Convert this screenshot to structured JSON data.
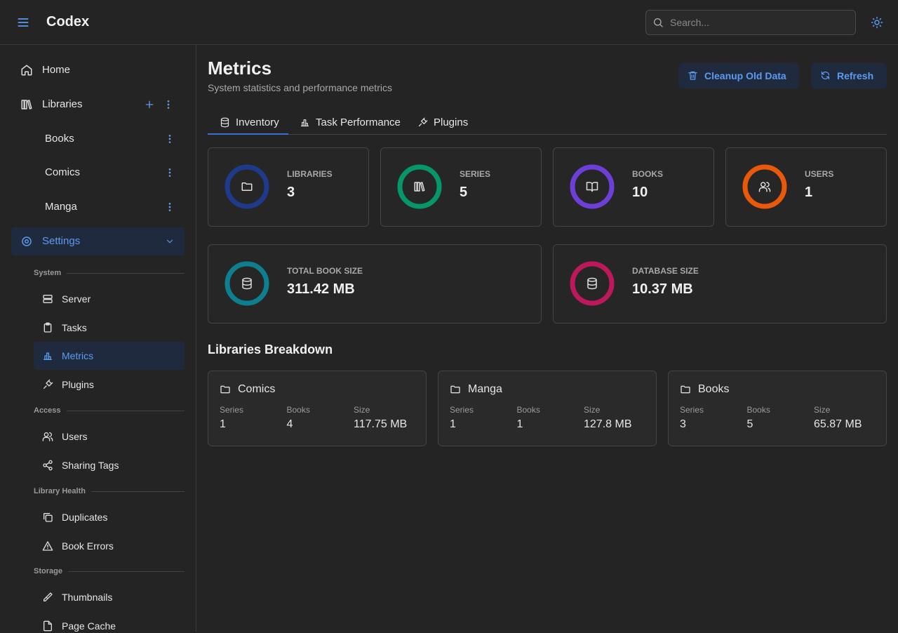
{
  "header": {
    "app_name": "Codex",
    "search_placeholder": "Search..."
  },
  "sidebar": {
    "nav": [
      "Home",
      "Libraries"
    ],
    "libraries": [
      "Books",
      "Comics",
      "Manga"
    ],
    "settings": "Settings",
    "sections": [
      {
        "title": "System",
        "items": [
          "Server",
          "Tasks",
          "Metrics",
          "Plugins"
        ]
      },
      {
        "title": "Access",
        "items": [
          "Users",
          "Sharing Tags"
        ]
      },
      {
        "title": "Library Health",
        "items": [
          "Duplicates",
          "Book Errors"
        ]
      },
      {
        "title": "Storage",
        "items": [
          "Thumbnails",
          "Page Cache"
        ]
      }
    ]
  },
  "page": {
    "title": "Metrics",
    "subtitle": "System statistics and performance metrics",
    "buttons": [
      "Cleanup Old Data",
      "Refresh"
    ],
    "tabs": [
      "Inventory",
      "Task Performance",
      "Plugins"
    ]
  },
  "stats": [
    {
      "label": "LIBRARIES",
      "value": 3
    },
    {
      "label": "SERIES",
      "value": 5
    },
    {
      "label": "BOOKS",
      "value": 10
    },
    {
      "label": "USERS",
      "value": 1
    }
  ],
  "sizes": [
    {
      "label": "TOTAL BOOK SIZE",
      "value": "311.42 MB"
    },
    {
      "label": "DATABASE SIZE",
      "value": "10.37 MB"
    }
  ],
  "breakdown": {
    "title": "Libraries Breakdown",
    "columns": [
      "Series",
      "Books",
      "Size"
    ],
    "libraries": [
      {
        "name": "Comics",
        "series": 1,
        "books": 4,
        "size": "117.75 MB"
      },
      {
        "name": "Manga",
        "series": 1,
        "books": 1,
        "size": "127.8 MB"
      },
      {
        "name": "Books",
        "series": 3,
        "books": 5,
        "size": "65.87 MB"
      }
    ]
  }
}
